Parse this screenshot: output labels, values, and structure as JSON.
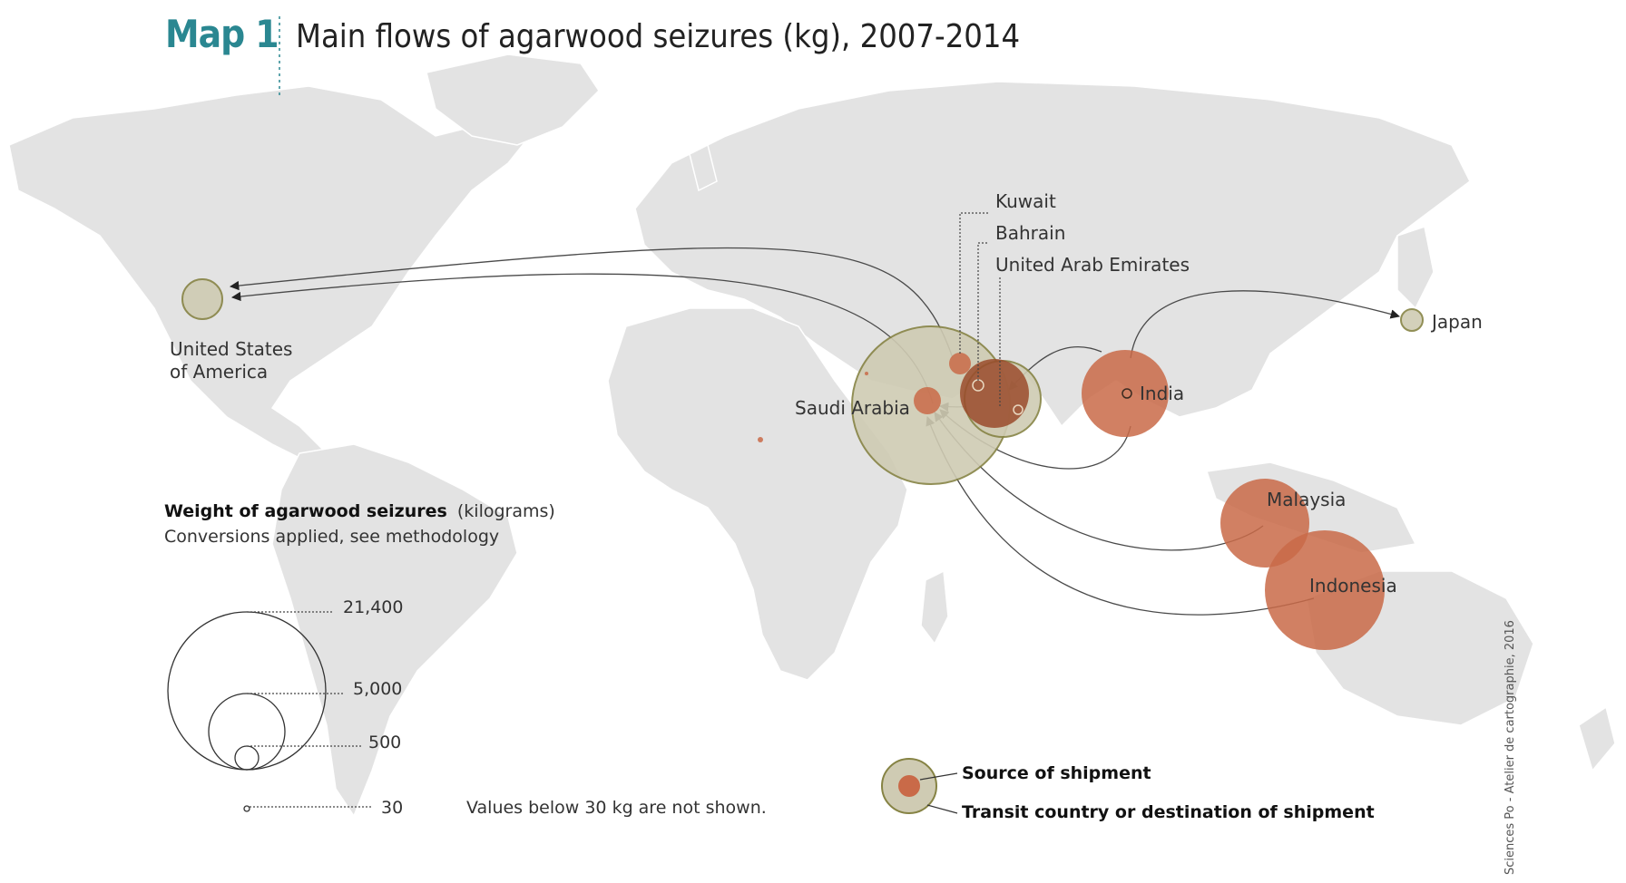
{
  "header": {
    "map_label": "Map 1",
    "title": "Main flows of agarwood seizures (kg), 2007-2014"
  },
  "places": {
    "usa_line1": "United States",
    "usa_line2": "of America",
    "saudi": "Saudi Arabia",
    "kuwait": "Kuwait",
    "bahrain": "Bahrain",
    "uae": "United Arab Emirates",
    "india": "India",
    "japan": "Japan",
    "malaysia": "Malaysia",
    "indonesia": "Indonesia"
  },
  "legend": {
    "heading_bold": "Weight of agarwood seizures",
    "heading_unit": "(kilograms)",
    "subheading": "Conversions applied, see methodology",
    "sizes": [
      "21,400",
      "5,000",
      "500",
      "30"
    ],
    "note": "Values below 30 kg are not shown.",
    "source_label": "Source of shipment",
    "transit_label": "Transit country or destination of shipment"
  },
  "colors": {
    "source": "#c96a48",
    "destination": "#cfcbb3",
    "accent": "#2a8791",
    "land": "#e3e3e3"
  },
  "credit": "Sciences Po - Atelier de cartographie, 2016"
}
